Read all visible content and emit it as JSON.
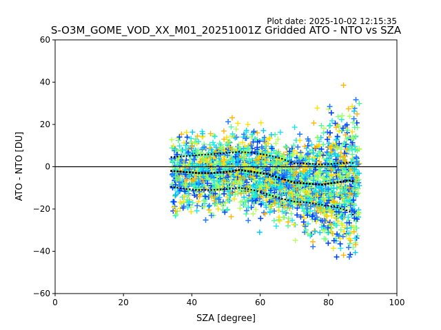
{
  "chart_data": {
    "type": "scatter",
    "plot_date": "Plot date: 2025-10-02 12:15:35",
    "title": "S-O3M_GOME_VOD_XX_M01_20251001Z Gridded ATO - NTO vs SZA",
    "xlabel": "SZA [degree]",
    "ylabel": "ATO - NTO [DU]",
    "xlim": [
      0,
      100
    ],
    "ylim": [
      -60,
      60
    ],
    "xticks": [
      "0",
      "20",
      "40",
      "60",
      "80",
      "100"
    ],
    "yticks": [
      "−60",
      "−40",
      "−20",
      "0",
      "20",
      "40",
      "60"
    ],
    "zero_line": 0,
    "marker": "+",
    "point_colors": [
      "#4cf89c",
      "#14e8ec",
      "#00c8ff",
      "#b4ff58",
      "#ffe000",
      "#ffb400",
      "#0040ff",
      "#2a7cff",
      "#7cff7c"
    ],
    "sza_range": [
      34,
      89
    ],
    "mean_curve": {
      "x": [
        34,
        38,
        42,
        46,
        50,
        54,
        58,
        62,
        66,
        70,
        74,
        78,
        82,
        86,
        88
      ],
      "y": [
        -2,
        -2.5,
        -3,
        -3,
        -2.5,
        -1.5,
        -2.5,
        -3.5,
        -5.5,
        -7.5,
        -8,
        -8.5,
        -7.5,
        -6.5,
        -7
      ]
    },
    "upper_sigma_curve": {
      "x": [
        34,
        38,
        42,
        46,
        50,
        54,
        58,
        62,
        66,
        70,
        74,
        78,
        82,
        86,
        88
      ],
      "y": [
        4.5,
        5,
        5.5,
        6,
        6.5,
        7,
        6.5,
        5.5,
        4,
        1.5,
        1.5,
        1,
        1.5,
        2,
        1.5
      ]
    },
    "lower_sigma_curve": {
      "x": [
        34,
        38,
        42,
        46,
        50,
        54,
        58,
        62,
        66,
        70,
        74,
        78,
        82,
        86,
        88
      ],
      "y": [
        -9.5,
        -10.5,
        -11,
        -11,
        -10.5,
        -10,
        -11,
        -13,
        -15,
        -16.5,
        -17,
        -18,
        -19,
        -21,
        -24
      ]
    }
  }
}
